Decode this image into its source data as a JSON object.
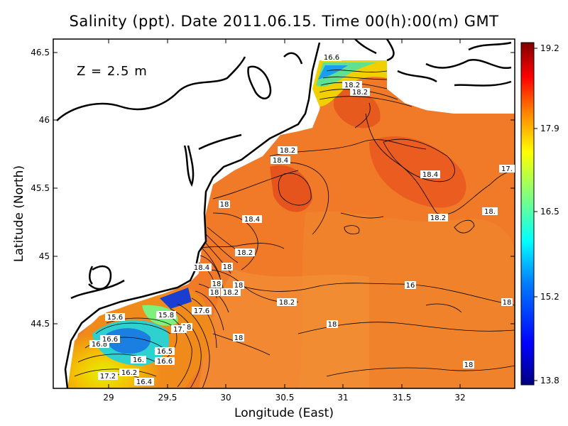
{
  "title": "Salinity (ppt). Date 2011.06.15. Time 00(h):00(m) GMT",
  "depth_label": "Z  =  2.5  m",
  "x_axis": {
    "label": "Longitude (East)",
    "ticks": [
      "29",
      "29.5",
      "30",
      "30.5",
      "31",
      "31.5",
      "32"
    ]
  },
  "y_axis": {
    "label": "Latitude (North)",
    "ticks": [
      "46.5",
      "46",
      "45.5",
      "45",
      "44.5"
    ]
  },
  "colorbar": {
    "ticks": [
      "19.2",
      "17.9",
      "16.5",
      "15.2",
      "13.8"
    ],
    "min": 13.8,
    "max": 19.2,
    "colors": [
      "#00007f",
      "#0000ff",
      "#007fff",
      "#00ffff",
      "#7fff7f",
      "#ffff00",
      "#ff7f00",
      "#ff0000",
      "#7f0000"
    ]
  },
  "contour_labels": [
    "16.6",
    "18.2",
    "18.2",
    "18.2",
    "18.4",
    "18.4",
    "17.",
    "18",
    "18.4",
    "18.2",
    "18.2",
    "18.4",
    "18",
    "18.2",
    "18",
    "18.2",
    "16",
    "18",
    "15.6",
    "15.8",
    "17.6",
    "18",
    "17.",
    "18",
    "16.8",
    "16.6",
    "16.5",
    "16.6",
    "16.",
    "17.2",
    "16.2",
    "16.4",
    "18",
    "18",
    "18",
    "18.",
    "18"
  ]
}
